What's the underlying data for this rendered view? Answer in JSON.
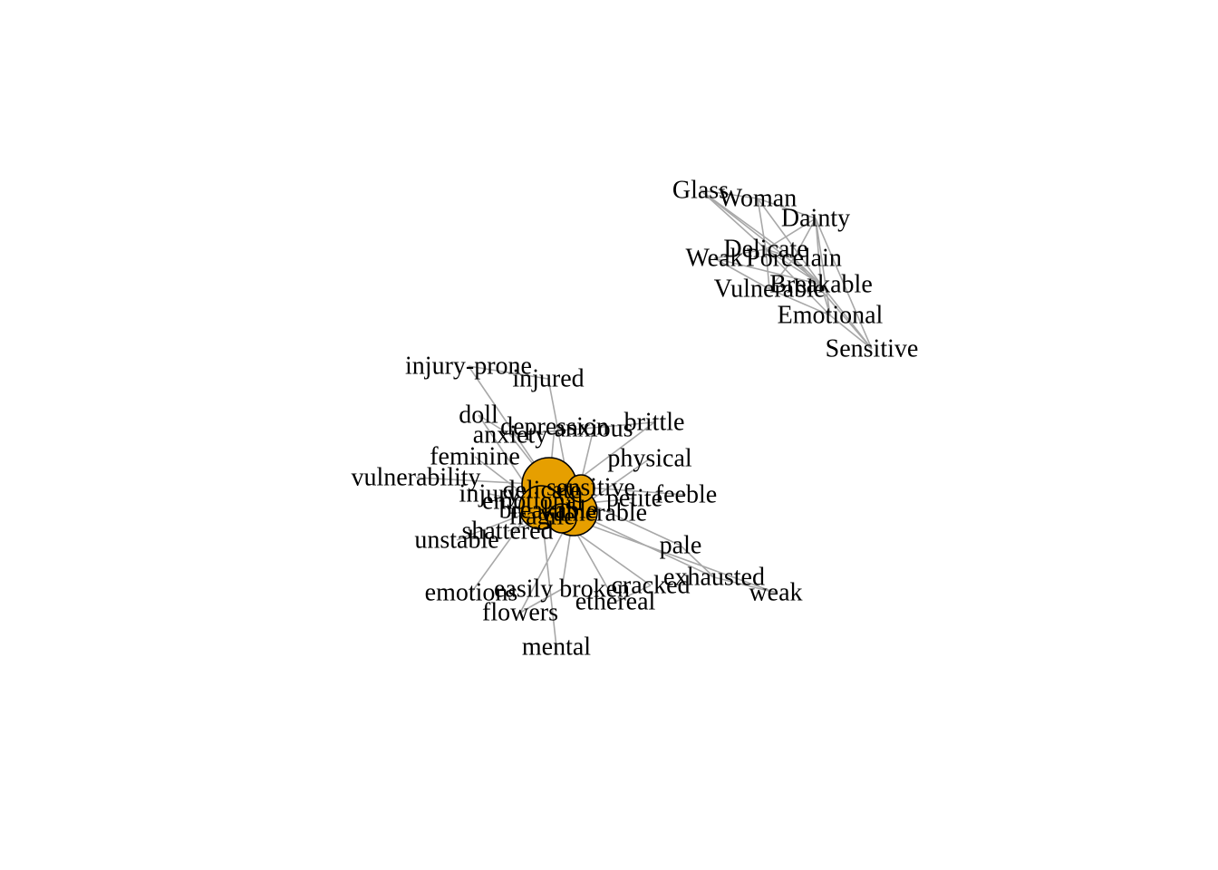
{
  "colors": {
    "background": "#ffffff",
    "node_fill": "#e69f00",
    "node_stroke": "#000000",
    "edge": "#a8a8a8",
    "label": "#000000"
  },
  "clusters": [
    {
      "id": "lower",
      "center_label": "",
      "nodes": [
        "injury-prone",
        "injured",
        "doll",
        "depression",
        "anxious",
        "brittle",
        "anxiety",
        "physical",
        "feminine",
        "vulnerability",
        "injury",
        "delicate",
        "sensitive",
        "emotional",
        "petite",
        "feeble",
        "vulnerable",
        "breakable",
        "fragile",
        "shattered",
        "unstable",
        "pale",
        "exhausted",
        "weak",
        "emotions",
        "easily broken",
        "cracked",
        "ethereal",
        "flowers",
        "mental"
      ]
    },
    {
      "id": "upper",
      "nodes": [
        "Glass",
        "Woman",
        "Dainty",
        "Delicate",
        "Weak",
        "Porcelain",
        "Breakable",
        "Vulnerable",
        "Emotional",
        "Sensitive"
      ]
    }
  ]
}
